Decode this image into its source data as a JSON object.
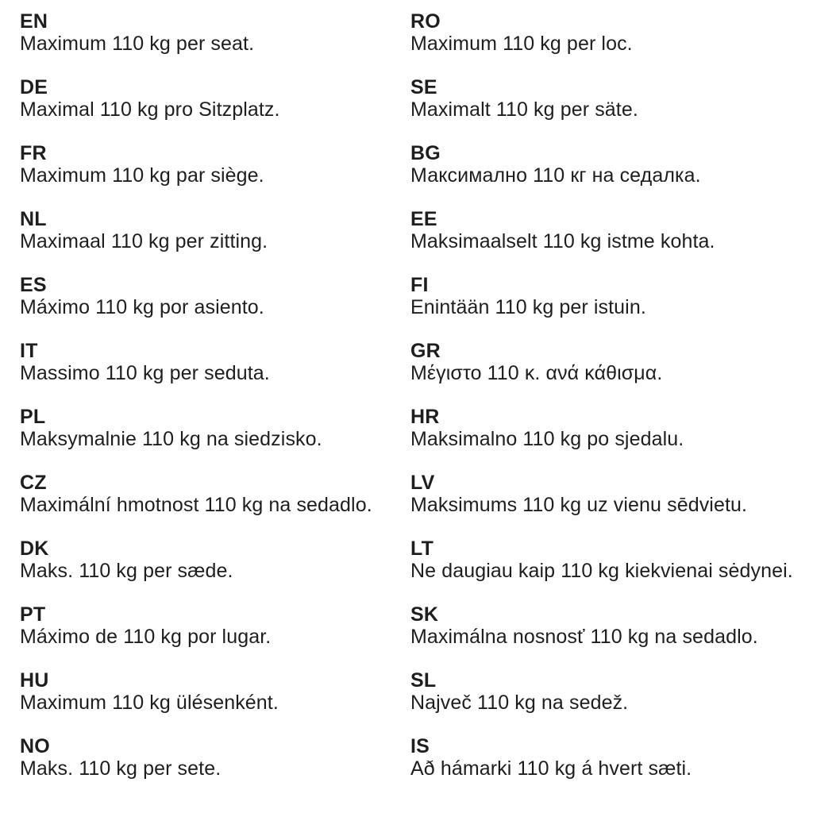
{
  "page": {
    "background_color": "#ffffff",
    "text_color": "#1e1e1e",
    "description": "Multilingual maximum seat load notice"
  },
  "columns": {
    "left": [
      {
        "code": "EN",
        "text": "Maximum 110 kg per seat."
      },
      {
        "code": "DE",
        "text": "Maximal 110 kg pro Sitzplatz."
      },
      {
        "code": "FR",
        "text": "Maximum 110 kg par siège."
      },
      {
        "code": "NL",
        "text": "Maximaal 110 kg per zitting."
      },
      {
        "code": "ES",
        "text": "Máximo 110 kg por asiento."
      },
      {
        "code": "IT",
        "text": "Massimo 110 kg per seduta."
      },
      {
        "code": "PL",
        "text": "Maksymalnie 110 kg na siedzisko."
      },
      {
        "code": "CZ",
        "text": "Maximální hmotnost 110 kg na sedadlo."
      },
      {
        "code": "DK",
        "text": "Maks. 110 kg per sæde."
      },
      {
        "code": "PT",
        "text": "Máximo de 110 kg por lugar."
      },
      {
        "code": "HU",
        "text": "Maximum 110 kg ülésenként."
      },
      {
        "code": "NO",
        "text": "Maks. 110 kg per sete."
      }
    ],
    "right": [
      {
        "code": "RO",
        "text": "Maximum 110 kg per loc."
      },
      {
        "code": "SE",
        "text": "Maximalt 110 kg per säte."
      },
      {
        "code": "BG",
        "text": "Максимално 110 кг на седалка."
      },
      {
        "code": "EE",
        "text": "Maksimaalselt 110 kg istme kohta."
      },
      {
        "code": "FI",
        "text": "Enintään 110 kg per istuin."
      },
      {
        "code": "GR",
        "text": "Μέγιστο 110 κ. ανά κάθισμα."
      },
      {
        "code": "HR",
        "text": "Maksimalno 110 kg po sjedalu."
      },
      {
        "code": "LV",
        "text": "Maksimums 110 kg uz vienu sēdvietu."
      },
      {
        "code": "LT",
        "text": "Ne daugiau kaip 110 kg kiekvienai sėdynei."
      },
      {
        "code": "SK",
        "text": "Maximálna nosnosť 110 kg na sedadlo."
      },
      {
        "code": "SL",
        "text": "Največ 110 kg na sedež."
      },
      {
        "code": "IS",
        "text": "Að hámarki 110 kg á hvert sæti."
      }
    ]
  }
}
